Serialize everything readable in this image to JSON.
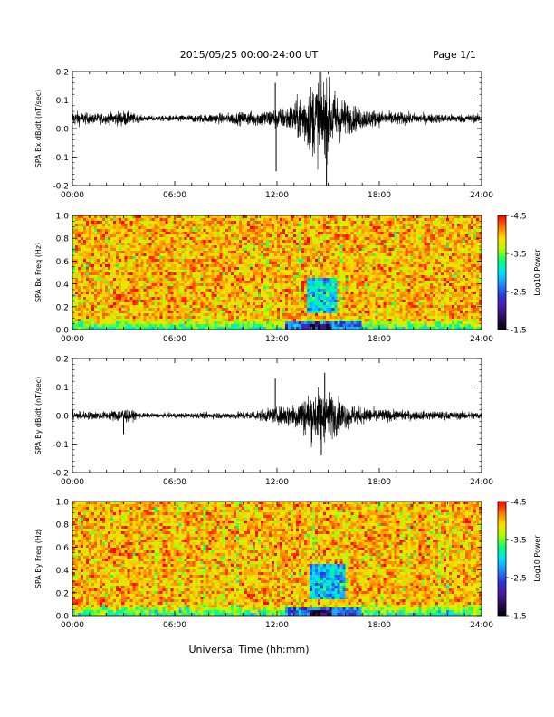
{
  "header": {
    "title": "2015/05/25  00:00-24:00 UT",
    "page": "Page 1/1"
  },
  "footer": {
    "xlabel": "Universal Time (hh:mm)"
  },
  "colors": {
    "trace": "#000000",
    "colormap": [
      "#000000",
      "#2a0a55",
      "#4b1aa8",
      "#2d36d8",
      "#1f8cff",
      "#00e0ff",
      "#00ff7a",
      "#a8ff00",
      "#ffe000",
      "#ff7a00",
      "#ff0000"
    ]
  },
  "chart_data": [
    {
      "type": "line",
      "ylabel": "SPA Bx dB/dt (nT/sec)",
      "xlim": [
        0,
        24
      ],
      "ylim": [
        -0.2,
        0.2
      ],
      "x_ticks": [
        "00:00",
        "06:00",
        "12:00",
        "18:00",
        "24:00"
      ],
      "y_ticks": [
        "-0.2",
        "-0.1",
        "0.0",
        "0.1",
        "0.2"
      ],
      "y_tick_values": [
        -0.2,
        -0.1,
        0.0,
        0.1,
        0.2
      ],
      "baseline": 0.035,
      "envelope_x": [
        0,
        1,
        2,
        3,
        4,
        5,
        6,
        7,
        8,
        9,
        10,
        11,
        12,
        12.5,
        13,
        13.5,
        14,
        14.5,
        15,
        15.5,
        16,
        16.5,
        17,
        18,
        19,
        20,
        21,
        22,
        23,
        24
      ],
      "envelope_amplitude": [
        0.03,
        0.02,
        0.02,
        0.03,
        0.012,
        0.01,
        0.012,
        0.015,
        0.018,
        0.02,
        0.025,
        0.03,
        0.04,
        0.045,
        0.06,
        0.1,
        0.13,
        0.16,
        0.14,
        0.1,
        0.07,
        0.05,
        0.04,
        0.03,
        0.025,
        0.02,
        0.018,
        0.016,
        0.016,
        0.015
      ],
      "spikes": [
        {
          "x": 11.9,
          "y": 0.16
        },
        {
          "x": 11.95,
          "y": -0.15
        },
        {
          "x": 14.9,
          "y": -0.21
        },
        {
          "x": 14.5,
          "y": 0.2
        }
      ]
    },
    {
      "type": "heatmap",
      "ylabel": "SPA Bx Freq (Hz)",
      "xlim": [
        0,
        24
      ],
      "ylim": [
        0.0,
        1.0
      ],
      "x_ticks": [
        "00:00",
        "06:00",
        "12:00",
        "18:00",
        "24:00"
      ],
      "y_ticks": [
        "0.0",
        "0.2",
        "0.4",
        "0.6",
        "0.8",
        "1.0"
      ],
      "y_tick_values": [
        0.0,
        0.2,
        0.4,
        0.6,
        0.8,
        1.0
      ],
      "colorbar": {
        "label": "Log10 Power",
        "range": [
          -4.5,
          -1.5
        ],
        "ticks": [
          "-1.5",
          "-2.5",
          "-3.5",
          "-4.5"
        ],
        "tick_values": [
          -1.5,
          -2.5,
          -3.5,
          -4.5
        ]
      },
      "background_level": -4.0,
      "features": [
        {
          "x_range": [
            13.8,
            15.6
          ],
          "y_range": [
            0.15,
            0.45
          ],
          "level": -3.0
        },
        {
          "x_range": [
            12.5,
            17.0
          ],
          "y_range": [
            0.0,
            0.08
          ],
          "level": -2.6
        },
        {
          "x_range": [
            14.0,
            15.2
          ],
          "y_range": [
            0.0,
            0.04
          ],
          "level": -1.8
        }
      ]
    },
    {
      "type": "line",
      "ylabel": "SPA By dB/dt (nT/sec)",
      "xlim": [
        0,
        24
      ],
      "ylim": [
        -0.2,
        0.2
      ],
      "x_ticks": [
        "00:00",
        "06:00",
        "12:00",
        "18:00",
        "24:00"
      ],
      "y_ticks": [
        "-0.2",
        "-0.1",
        "0.0",
        "0.1",
        "0.2"
      ],
      "y_tick_values": [
        -0.2,
        -0.1,
        0.0,
        0.1,
        0.2
      ],
      "baseline": 0.0,
      "envelope_x": [
        0,
        1,
        2,
        3,
        4,
        5,
        6,
        7,
        8,
        9,
        10,
        11,
        12,
        12.5,
        13,
        13.5,
        14,
        14.5,
        15,
        15.5,
        16,
        16.5,
        17,
        18,
        19,
        20,
        21,
        22,
        23,
        24
      ],
      "envelope_amplitude": [
        0.02,
        0.015,
        0.015,
        0.03,
        0.01,
        0.008,
        0.01,
        0.01,
        0.012,
        0.012,
        0.015,
        0.02,
        0.03,
        0.04,
        0.05,
        0.07,
        0.09,
        0.1,
        0.09,
        0.07,
        0.05,
        0.04,
        0.03,
        0.025,
        0.02,
        0.018,
        0.016,
        0.015,
        0.015,
        0.015
      ],
      "spikes": [
        {
          "x": 11.9,
          "y": 0.13
        },
        {
          "x": 3.0,
          "y": -0.065
        },
        {
          "x": 14.8,
          "y": 0.15
        },
        {
          "x": 14.6,
          "y": -0.14
        }
      ]
    },
    {
      "type": "heatmap",
      "ylabel": "SPA By Freq (Hz)",
      "xlim": [
        0,
        24
      ],
      "ylim": [
        0.0,
        1.0
      ],
      "x_ticks": [
        "00:00",
        "06:00",
        "12:00",
        "18:00",
        "24:00"
      ],
      "y_ticks": [
        "0.0",
        "0.2",
        "0.4",
        "0.6",
        "0.8",
        "1.0"
      ],
      "y_tick_values": [
        0.0,
        0.2,
        0.4,
        0.6,
        0.8,
        1.0
      ],
      "colorbar": {
        "label": "Log10 Power",
        "range": [
          -4.5,
          -1.5
        ],
        "ticks": [
          "-1.5",
          "-2.5",
          "-3.5",
          "-4.5"
        ],
        "tick_values": [
          -1.5,
          -2.5,
          -3.5,
          -4.5
        ]
      },
      "background_level": -4.0,
      "features": [
        {
          "x_range": [
            14.0,
            16.0
          ],
          "y_range": [
            0.15,
            0.45
          ],
          "level": -2.9
        },
        {
          "x_range": [
            12.5,
            17.0
          ],
          "y_range": [
            0.0,
            0.08
          ],
          "level": -2.6
        },
        {
          "x_range": [
            14.0,
            15.2
          ],
          "y_range": [
            0.0,
            0.04
          ],
          "level": -1.8
        }
      ]
    }
  ]
}
